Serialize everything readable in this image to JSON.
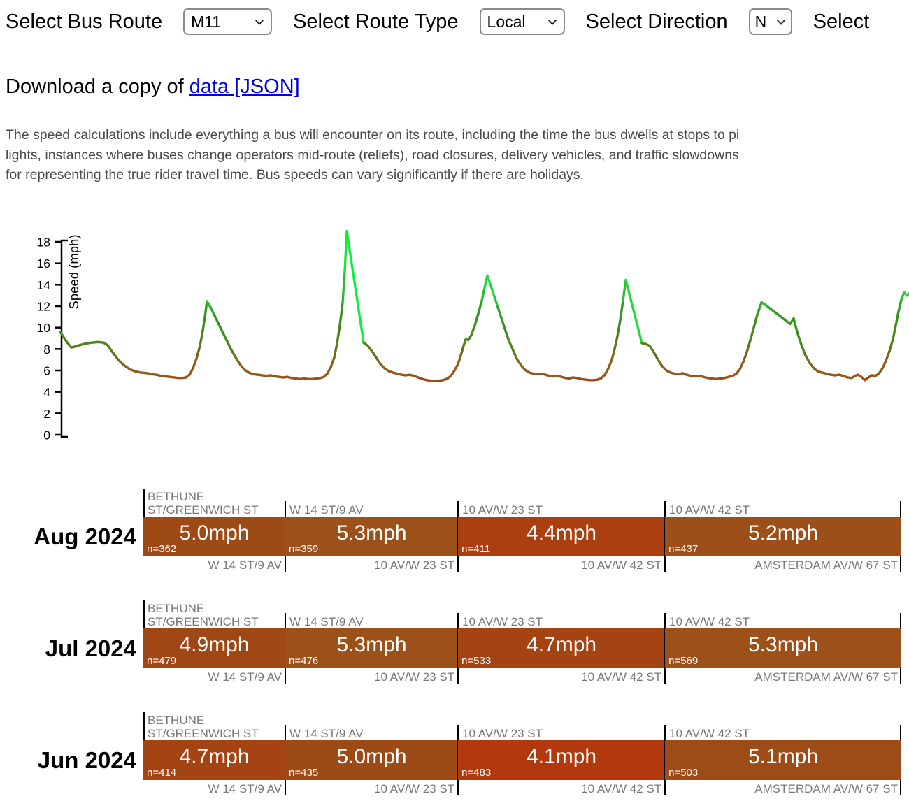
{
  "controls": {
    "bus_route": {
      "label": "Select Bus Route",
      "value": "M11"
    },
    "route_type": {
      "label": "Select Route Type",
      "value": "Local"
    },
    "direction": {
      "label": "Select Direction",
      "value": "N"
    },
    "clipped": {
      "label": "Select"
    }
  },
  "download": {
    "prefix": "Download a copy of ",
    "link_text": "data [JSON]"
  },
  "description_lines": [
    "The speed calculations include everything a bus will encounter on its route, including the time the bus dwells at stops to pi",
    "lights, instances where buses change operators mid-route (reliefs), road closures, delivery vehicles, and traffic slowdowns",
    "for representing the true rider travel time. Bus speeds can vary significantly if there are holidays."
  ],
  "chart_data": {
    "type": "line",
    "title": "",
    "xlabel": "",
    "ylabel": "Speed (mph)",
    "ylim": [
      0,
      19.5
    ],
    "yticks": [
      0,
      2,
      4,
      6,
      8,
      10,
      12,
      14,
      16,
      18
    ],
    "grid": false,
    "legend": "none",
    "points": [
      [
        86,
        9.6
      ],
      [
        89,
        9.3
      ],
      [
        95,
        8.7
      ],
      [
        102,
        8.15
      ],
      [
        106,
        8.2
      ],
      [
        113,
        8.35
      ],
      [
        122,
        8.5
      ],
      [
        131,
        8.6
      ],
      [
        140,
        8.65
      ],
      [
        148,
        8.6
      ],
      [
        154,
        8.35
      ],
      [
        161,
        7.7
      ],
      [
        169,
        7.0
      ],
      [
        177,
        6.5
      ],
      [
        186,
        6.1
      ],
      [
        194,
        5.9
      ],
      [
        202,
        5.8
      ],
      [
        210,
        5.75
      ],
      [
        217,
        5.65
      ],
      [
        224,
        5.6
      ],
      [
        230,
        5.5
      ],
      [
        236,
        5.45
      ],
      [
        243,
        5.4
      ],
      [
        249,
        5.35
      ],
      [
        255,
        5.3
      ],
      [
        261,
        5.3
      ],
      [
        266,
        5.35
      ],
      [
        271,
        5.6
      ],
      [
        276,
        6.2
      ],
      [
        281,
        7.1
      ],
      [
        286,
        8.3
      ],
      [
        290,
        9.7
      ],
      [
        293,
        11.0
      ],
      [
        296,
        12.45
      ],
      [
        301,
        11.9
      ],
      [
        307,
        11.1
      ],
      [
        313,
        10.3
      ],
      [
        319,
        9.5
      ],
      [
        325,
        8.7
      ],
      [
        331,
        7.9
      ],
      [
        338,
        7.1
      ],
      [
        344,
        6.5
      ],
      [
        350,
        6.05
      ],
      [
        356,
        5.8
      ],
      [
        362,
        5.65
      ],
      [
        369,
        5.6
      ],
      [
        375,
        5.55
      ],
      [
        381,
        5.5
      ],
      [
        387,
        5.55
      ],
      [
        393,
        5.45
      ],
      [
        399,
        5.4
      ],
      [
        405,
        5.35
      ],
      [
        411,
        5.4
      ],
      [
        417,
        5.3
      ],
      [
        423,
        5.25
      ],
      [
        429,
        5.2
      ],
      [
        435,
        5.25
      ],
      [
        441,
        5.2
      ],
      [
        447,
        5.2
      ],
      [
        452,
        5.25
      ],
      [
        458,
        5.3
      ],
      [
        463,
        5.4
      ],
      [
        468,
        5.7
      ],
      [
        473,
        6.3
      ],
      [
        478,
        7.2
      ],
      [
        482,
        8.5
      ],
      [
        486,
        10.2
      ],
      [
        490,
        12.3
      ],
      [
        493,
        15.2
      ],
      [
        496,
        19.0
      ],
      [
        520,
        8.6
      ],
      [
        526,
        8.3
      ],
      [
        532,
        7.8
      ],
      [
        538,
        7.2
      ],
      [
        544,
        6.6
      ],
      [
        550,
        6.2
      ],
      [
        556,
        5.95
      ],
      [
        562,
        5.8
      ],
      [
        568,
        5.7
      ],
      [
        574,
        5.6
      ],
      [
        580,
        5.55
      ],
      [
        586,
        5.6
      ],
      [
        592,
        5.5
      ],
      [
        598,
        5.35
      ],
      [
        604,
        5.2
      ],
      [
        610,
        5.1
      ],
      [
        616,
        5.05
      ],
      [
        622,
        5.0
      ],
      [
        628,
        5.05
      ],
      [
        634,
        5.1
      ],
      [
        640,
        5.25
      ],
      [
        645,
        5.5
      ],
      [
        650,
        6.0
      ],
      [
        655,
        6.6
      ],
      [
        659,
        7.4
      ],
      [
        663,
        8.3
      ],
      [
        666,
        8.9
      ],
      [
        670,
        8.85
      ],
      [
        674,
        9.3
      ],
      [
        679,
        10.2
      ],
      [
        684,
        11.3
      ],
      [
        689,
        12.5
      ],
      [
        693,
        13.7
      ],
      [
        697,
        14.85
      ],
      [
        702,
        13.9
      ],
      [
        707,
        12.9
      ],
      [
        712,
        11.9
      ],
      [
        717,
        10.9
      ],
      [
        722,
        9.9
      ],
      [
        727,
        8.9
      ],
      [
        733,
        8.0
      ],
      [
        739,
        7.1
      ],
      [
        745,
        6.5
      ],
      [
        751,
        6.05
      ],
      [
        757,
        5.8
      ],
      [
        763,
        5.7
      ],
      [
        769,
        5.65
      ],
      [
        774,
        5.7
      ],
      [
        780,
        5.6
      ],
      [
        786,
        5.5
      ],
      [
        792,
        5.45
      ],
      [
        797,
        5.5
      ],
      [
        803,
        5.4
      ],
      [
        809,
        5.3
      ],
      [
        814,
        5.25
      ],
      [
        819,
        5.35
      ],
      [
        825,
        5.3
      ],
      [
        831,
        5.2
      ],
      [
        837,
        5.15
      ],
      [
        843,
        5.1
      ],
      [
        849,
        5.1
      ],
      [
        855,
        5.15
      ],
      [
        860,
        5.3
      ],
      [
        865,
        5.6
      ],
      [
        870,
        6.2
      ],
      [
        875,
        7.0
      ],
      [
        879,
        8.0
      ],
      [
        883,
        9.2
      ],
      [
        887,
        10.7
      ],
      [
        891,
        12.5
      ],
      [
        895,
        14.45
      ],
      [
        918,
        8.55
      ],
      [
        924,
        8.45
      ],
      [
        929,
        8.3
      ],
      [
        935,
        7.7
      ],
      [
        941,
        7.0
      ],
      [
        947,
        6.4
      ],
      [
        953,
        6.0
      ],
      [
        959,
        5.8
      ],
      [
        965,
        5.7
      ],
      [
        971,
        5.65
      ],
      [
        976,
        5.75
      ],
      [
        982,
        5.6
      ],
      [
        988,
        5.5
      ],
      [
        994,
        5.45
      ],
      [
        1000,
        5.5
      ],
      [
        1006,
        5.4
      ],
      [
        1012,
        5.3
      ],
      [
        1018,
        5.25
      ],
      [
        1024,
        5.2
      ],
      [
        1030,
        5.25
      ],
      [
        1036,
        5.3
      ],
      [
        1042,
        5.4
      ],
      [
        1048,
        5.5
      ],
      [
        1053,
        5.7
      ],
      [
        1058,
        6.1
      ],
      [
        1063,
        6.8
      ],
      [
        1068,
        7.7
      ],
      [
        1073,
        8.8
      ],
      [
        1078,
        10.0
      ],
      [
        1083,
        11.2
      ],
      [
        1089,
        12.35
      ],
      [
        1095,
        12.1
      ],
      [
        1101,
        11.8
      ],
      [
        1107,
        11.5
      ],
      [
        1113,
        11.2
      ],
      [
        1119,
        10.9
      ],
      [
        1125,
        10.6
      ],
      [
        1130,
        10.35
      ],
      [
        1135,
        10.85
      ],
      [
        1140,
        9.6
      ],
      [
        1146,
        8.4
      ],
      [
        1152,
        7.4
      ],
      [
        1158,
        6.7
      ],
      [
        1164,
        6.2
      ],
      [
        1170,
        5.9
      ],
      [
        1176,
        5.8
      ],
      [
        1182,
        5.7
      ],
      [
        1188,
        5.6
      ],
      [
        1194,
        5.55
      ],
      [
        1200,
        5.6
      ],
      [
        1206,
        5.5
      ],
      [
        1212,
        5.35
      ],
      [
        1218,
        5.3
      ],
      [
        1223,
        5.5
      ],
      [
        1227,
        5.6
      ],
      [
        1232,
        5.4
      ],
      [
        1237,
        5.1
      ],
      [
        1242,
        5.35
      ],
      [
        1247,
        5.55
      ],
      [
        1252,
        5.5
      ],
      [
        1257,
        5.7
      ],
      [
        1262,
        6.2
      ],
      [
        1267,
        6.9
      ],
      [
        1272,
        7.8
      ],
      [
        1277,
        8.9
      ],
      [
        1281,
        10.2
      ],
      [
        1285,
        11.5
      ],
      [
        1289,
        12.6
      ],
      [
        1293,
        13.3
      ],
      [
        1297,
        13.0
      ],
      [
        1302,
        13.3
      ]
    ]
  },
  "color_scale": [
    [
      4.0,
      "#b4370c"
    ],
    [
      5.0,
      "#9e4a16"
    ],
    [
      5.5,
      "#9a561c"
    ],
    [
      6.5,
      "#8c611a"
    ],
    [
      7.5,
      "#706c18"
    ],
    [
      8.5,
      "#52821e"
    ],
    [
      9.5,
      "#408c1e"
    ],
    [
      10.5,
      "#369420"
    ],
    [
      11.5,
      "#309e24"
    ],
    [
      12.5,
      "#2ebe32"
    ],
    [
      13.5,
      "#26d43a"
    ],
    [
      15.0,
      "#1ee23c"
    ],
    [
      19.0,
      "#0af23e"
    ]
  ],
  "bars": {
    "widths_pct": [
      18.73,
      22.79,
      27.31,
      31.17
    ],
    "stations": [
      "BETHUNE ST/GREENWICH ST",
      "W 14 ST/9 AV",
      "10 AV/W 23 ST",
      "10 AV/W 42 ST",
      "AMSTERDAM AV/W 67 ST"
    ]
  },
  "months": [
    {
      "label": "Aug 2024",
      "segments": [
        {
          "from": "BETHUNE ST/GREENWICH ST",
          "to": "W 14 ST/9 AV",
          "speed": 5.0,
          "text": "5.0mph",
          "n": "n=362"
        },
        {
          "from": "W 14 ST/9 AV",
          "to": "10 AV/W 23 ST",
          "speed": 5.3,
          "text": "5.3mph",
          "n": "n=359"
        },
        {
          "from": "10 AV/W 23 ST",
          "to": "10 AV/W 42 ST",
          "speed": 4.4,
          "text": "4.4mph",
          "n": "n=411"
        },
        {
          "from": "10 AV/W 42 ST",
          "to": "AMSTERDAM AV/W 67 ST",
          "speed": 5.2,
          "text": "5.2mph",
          "n": "n=437"
        }
      ]
    },
    {
      "label": "Jul 2024",
      "segments": [
        {
          "from": "BETHUNE ST/GREENWICH ST",
          "to": "W 14 ST/9 AV",
          "speed": 4.9,
          "text": "4.9mph",
          "n": "n=479"
        },
        {
          "from": "W 14 ST/9 AV",
          "to": "10 AV/W 23 ST",
          "speed": 5.3,
          "text": "5.3mph",
          "n": "n=476"
        },
        {
          "from": "10 AV/W 23 ST",
          "to": "10 AV/W 42 ST",
          "speed": 4.7,
          "text": "4.7mph",
          "n": "n=533"
        },
        {
          "from": "10 AV/W 42 ST",
          "to": "AMSTERDAM AV/W 67 ST",
          "speed": 5.3,
          "text": "5.3mph",
          "n": "n=569"
        }
      ]
    },
    {
      "label": "Jun 2024",
      "segments": [
        {
          "from": "BETHUNE ST/GREENWICH ST",
          "to": "W 14 ST/9 AV",
          "speed": 4.7,
          "text": "4.7mph",
          "n": "n=414"
        },
        {
          "from": "W 14 ST/9 AV",
          "to": "10 AV/W 23 ST",
          "speed": 5.0,
          "text": "5.0mph",
          "n": "n=435"
        },
        {
          "from": "10 AV/W 23 ST",
          "to": "10 AV/W 42 ST",
          "speed": 4.1,
          "text": "4.1mph",
          "n": "n=483"
        },
        {
          "from": "10 AV/W 42 ST",
          "to": "AMSTERDAM AV/W 67 ST",
          "speed": 5.1,
          "text": "5.1mph",
          "n": "n=503"
        }
      ]
    }
  ]
}
